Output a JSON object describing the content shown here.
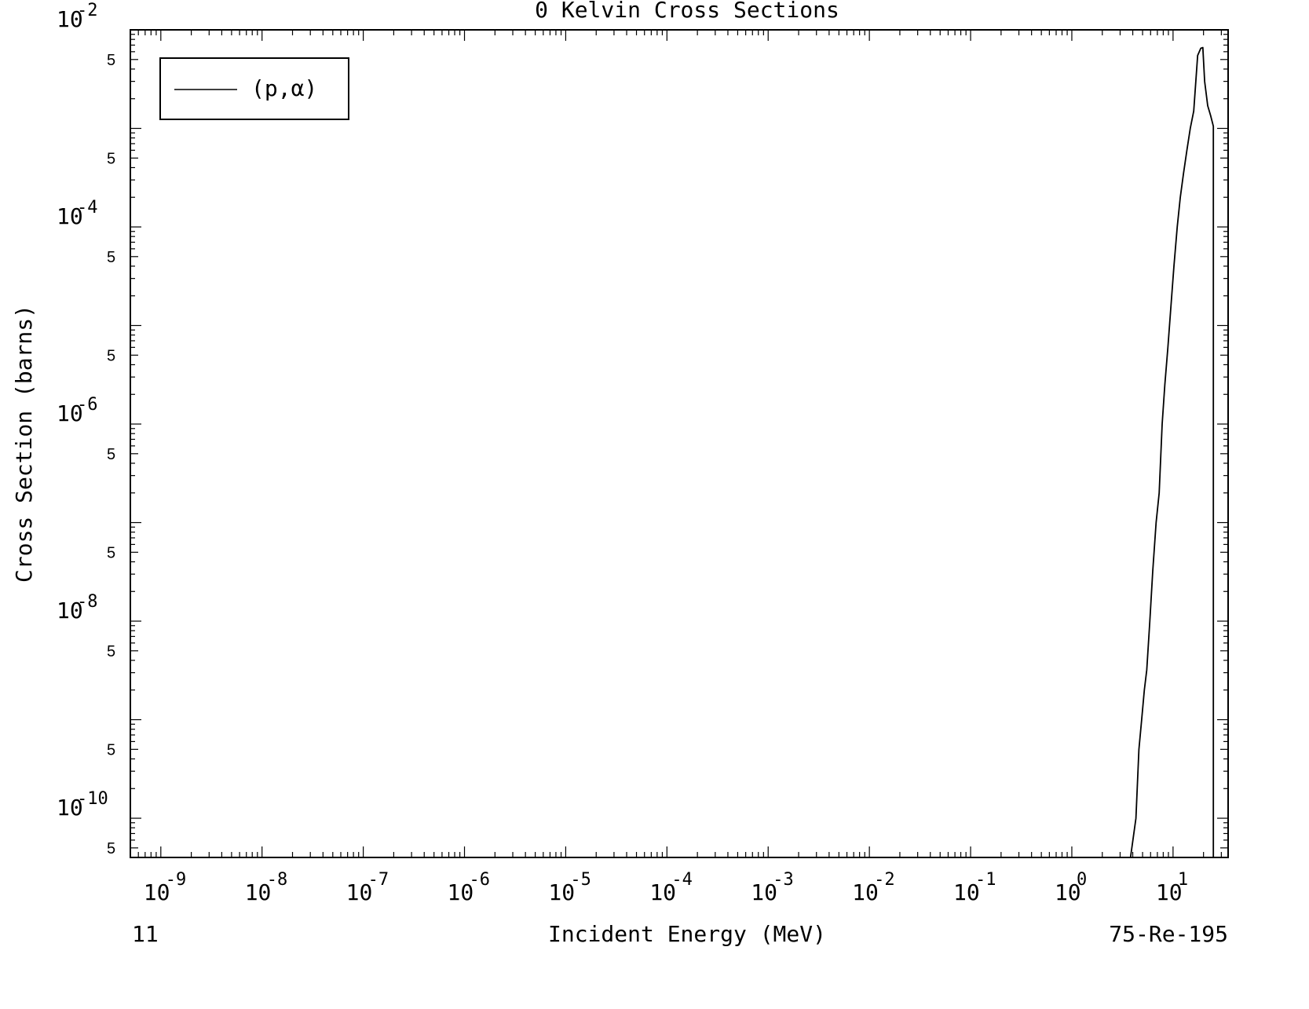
{
  "chart_data": {
    "type": "line",
    "title": "0 Kelvin Cross Sections",
    "xlabel": "Incident Energy (MeV)",
    "ylabel": "Cross Section (barns)",
    "xscale": "log",
    "yscale": "log",
    "xlim": [
      5e-10,
      35
    ],
    "ylim": [
      4e-11,
      0.01
    ],
    "x_ticks": [
      {
        "base": "10",
        "exp": "-9"
      },
      {
        "base": "10",
        "exp": "-8"
      },
      {
        "base": "10",
        "exp": "-7"
      },
      {
        "base": "10",
        "exp": "-6"
      },
      {
        "base": "10",
        "exp": "-5"
      },
      {
        "base": "10",
        "exp": "-4"
      },
      {
        "base": "10",
        "exp": "-3"
      },
      {
        "base": "10",
        "exp": "-2"
      },
      {
        "base": "10",
        "exp": "-1"
      },
      {
        "base": "10",
        "exp": "0"
      },
      {
        "base": "10",
        "exp": "1"
      }
    ],
    "y_ticks": [
      {
        "base": "10",
        "exp": "-2"
      },
      {
        "base": "10",
        "exp": "-4"
      },
      {
        "base": "10",
        "exp": "-6"
      },
      {
        "base": "10",
        "exp": "-8"
      },
      {
        "base": "10",
        "exp": "-10"
      }
    ],
    "y_minor_label": "5",
    "legend": {
      "position": "top-left",
      "entries": [
        "(p,α)"
      ]
    },
    "footer_left": "11",
    "footer_right": "75-Re-195",
    "grid": false,
    "series": [
      {
        "name": "(p,α)",
        "color": "#000000",
        "x": [
          3.8,
          4.3,
          4.6,
          4.9,
          5.2,
          5.5,
          5.9,
          6.3,
          6.8,
          7.3,
          7.8,
          8.3,
          8.9,
          9.5,
          10.2,
          11,
          11.8,
          12.7,
          13.7,
          14.8,
          16,
          17.5,
          18.8,
          19.7,
          20.5,
          22,
          23.5,
          25,
          25
        ],
        "y": [
          4e-11,
          1e-10,
          5e-10,
          1e-09,
          2e-09,
          3.2e-09,
          1e-08,
          3.2e-08,
          1e-07,
          2e-07,
          1e-06,
          2.5e-06,
          6e-06,
          1.5e-05,
          4e-05,
          0.0001,
          0.0002,
          0.00035,
          0.0006,
          0.001,
          0.0015,
          0.0055,
          0.0065,
          0.0066,
          0.003,
          0.0017,
          0.00135,
          0.00105,
          4e-11
        ]
      }
    ]
  }
}
